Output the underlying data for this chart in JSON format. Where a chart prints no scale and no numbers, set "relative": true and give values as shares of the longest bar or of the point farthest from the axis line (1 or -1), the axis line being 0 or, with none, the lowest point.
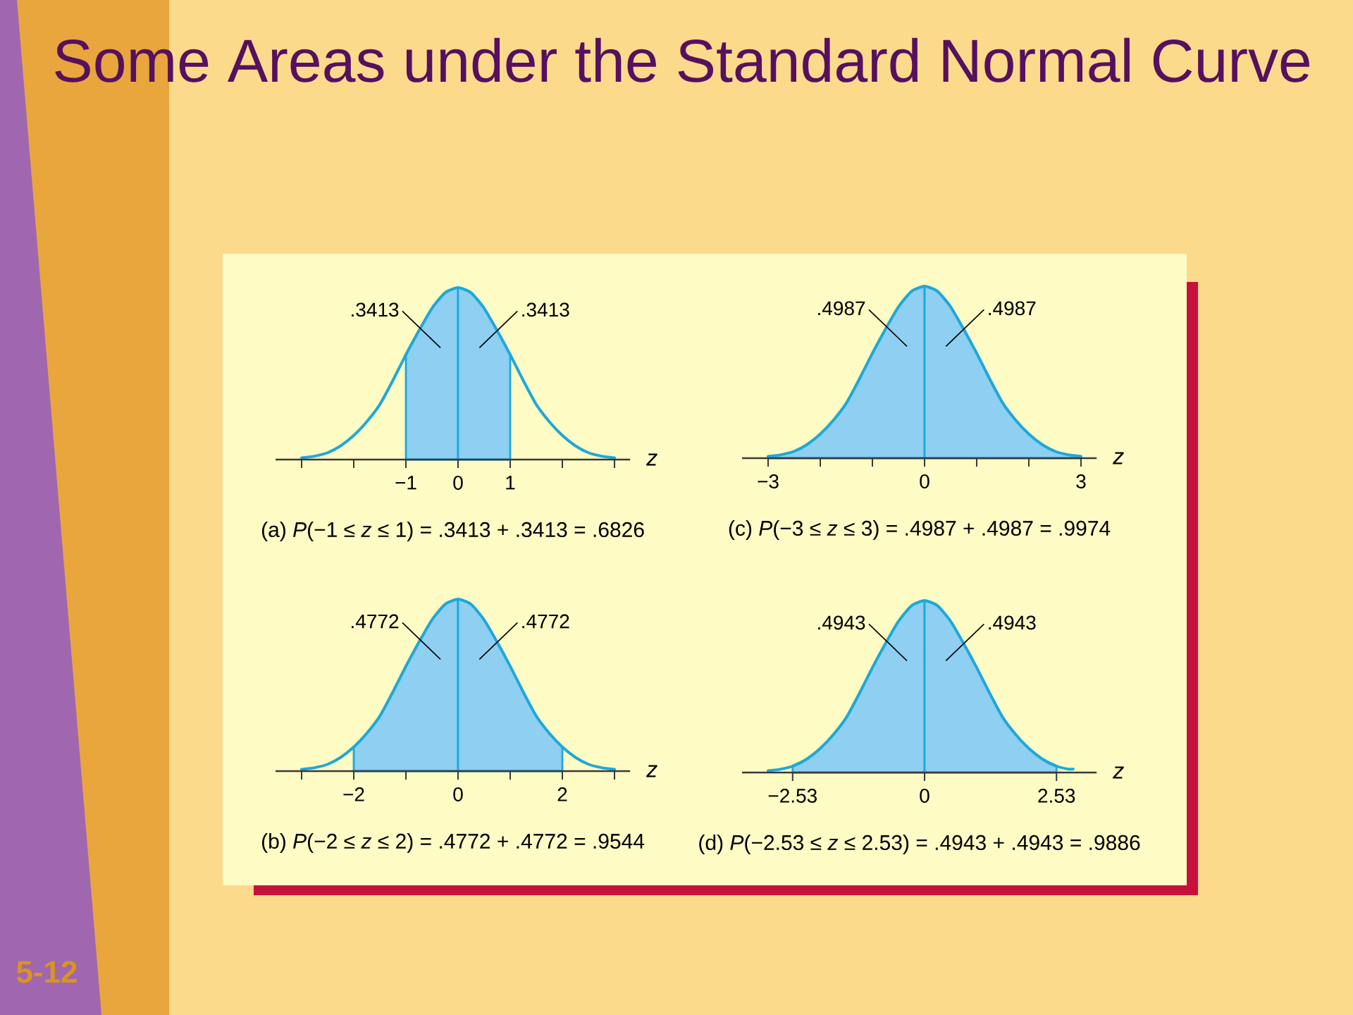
{
  "chart_data": [
    {
      "type": "area",
      "title": "Some Areas under the Standard Normal Curve",
      "xlabel": "z",
      "relative": true,
      "xlim": [
        -3.5,
        3.3
      ],
      "xticks": [
        {
          "value": -3,
          "label": null
        },
        {
          "value": -2,
          "label": null
        },
        {
          "value": -1,
          "label": "−1"
        },
        0,
        1,
        {
          "value": 2,
          "label": null
        },
        {
          "value": 3,
          "label": null
        }
      ],
      "series": [
        {
          "type": "line",
          "color": "#1fa8d9",
          "x": [
            -3,
            -2.75,
            -2.5,
            -2.25,
            -2,
            -1.75,
            -1.5,
            -1.25,
            -1,
            -0.75,
            -0.5,
            -0.25,
            0,
            0.25,
            0.5,
            0.75,
            1,
            1.25,
            1.5,
            1.75,
            2,
            2.25,
            2.5,
            2.75,
            3
          ],
          "values": [
            0.01,
            0.02,
            0.04,
            0.08,
            0.14,
            0.22,
            0.32,
            0.46,
            0.61,
            0.75,
            0.88,
            0.97,
            1,
            0.97,
            0.88,
            0.75,
            0.61,
            0.46,
            0.32,
            0.22,
            0.14,
            0.08,
            0.04,
            0.02,
            0.01
          ]
        },
        {
          "color": "#8ecff2",
          "x": [
            -1,
            -0.75,
            -0.5,
            -0.25,
            0
          ],
          "values": [
            0.61,
            0.75,
            0.88,
            0.97,
            1
          ]
        },
        {
          "color": "#8ecff2",
          "x": [
            0,
            0.25,
            0.5,
            0.75,
            1
          ],
          "values": [
            1,
            0.97,
            0.88,
            0.75,
            0.61
          ]
        }
      ],
      "annotations": [
        ".3413",
        ".3413",
        "(a) *P*(−1 ≤ *z* ≤ 1) = .3413 + .3413 = .6826",
        "5-12"
      ]
    },
    {
      "type": "area",
      "xlabel": "z",
      "relative": true,
      "xlim": [
        -3.5,
        3.3
      ],
      "xticks": [
        {
          "value": -3,
          "label": "−3"
        },
        {
          "value": -2,
          "label": null
        },
        {
          "value": -1,
          "label": null
        },
        0,
        {
          "value": 1,
          "label": null
        },
        {
          "value": 2,
          "label": null
        },
        3
      ],
      "series": [
        {
          "type": "line",
          "color": "#1fa8d9",
          "x": [
            -3,
            -2.75,
            -2.5,
            -2.25,
            -2,
            -1.75,
            -1.5,
            -1.25,
            -1,
            -0.75,
            -0.5,
            -0.25,
            0,
            0.25,
            0.5,
            0.75,
            1,
            1.25,
            1.5,
            1.75,
            2,
            2.25,
            2.5,
            2.75,
            3
          ],
          "values": [
            0.01,
            0.02,
            0.04,
            0.08,
            0.14,
            0.22,
            0.32,
            0.46,
            0.61,
            0.75,
            0.88,
            0.97,
            1,
            0.97,
            0.88,
            0.75,
            0.61,
            0.46,
            0.32,
            0.22,
            0.14,
            0.08,
            0.04,
            0.02,
            0.01
          ]
        },
        {
          "color": "#8ecff2",
          "x": [
            -3,
            -2.75,
            -2.5,
            -2.25,
            -2,
            -1.75,
            -1.5,
            -1.25,
            -1,
            -0.75,
            -0.5,
            -0.25,
            0
          ],
          "values": [
            0.01,
            0.02,
            0.04,
            0.08,
            0.14,
            0.22,
            0.32,
            0.46,
            0.61,
            0.75,
            0.88,
            0.97,
            1
          ]
        },
        {
          "color": "#8ecff2",
          "x": [
            0,
            0.25,
            0.5,
            0.75,
            1,
            1.25,
            1.5,
            1.75,
            2,
            2.25,
            2.5,
            2.75,
            3
          ],
          "values": [
            1,
            0.97,
            0.88,
            0.75,
            0.61,
            0.46,
            0.32,
            0.22,
            0.14,
            0.08,
            0.04,
            0.02,
            0.01
          ]
        }
      ],
      "annotations": [
        ".4987",
        ".4987",
        "(c) *P*(−3 ≤ *z* ≤ 3) = .4987 + .4987 = .9974"
      ]
    },
    {
      "type": "area",
      "xlabel": "z",
      "relative": true,
      "xlim": [
        -3.5,
        3.3
      ],
      "xticks": [
        {
          "value": -3,
          "label": null
        },
        {
          "value": -2,
          "label": "−2"
        },
        {
          "value": -1,
          "label": null
        },
        0,
        {
          "value": 1,
          "label": null
        },
        2,
        {
          "value": 3,
          "label": null
        }
      ],
      "series": [
        {
          "type": "line",
          "color": "#1fa8d9",
          "x": [
            -3,
            -2.75,
            -2.5,
            -2.25,
            -2,
            -1.75,
            -1.5,
            -1.25,
            -1,
            -0.75,
            -0.5,
            -0.25,
            0,
            0.25,
            0.5,
            0.75,
            1,
            1.25,
            1.5,
            1.75,
            2,
            2.25,
            2.5,
            2.75,
            3
          ],
          "values": [
            0.01,
            0.02,
            0.04,
            0.08,
            0.14,
            0.22,
            0.32,
            0.46,
            0.61,
            0.75,
            0.88,
            0.97,
            1,
            0.97,
            0.88,
            0.75,
            0.61,
            0.46,
            0.32,
            0.22,
            0.14,
            0.08,
            0.04,
            0.02,
            0.01
          ]
        },
        {
          "color": "#8ecff2",
          "x": [
            -2,
            -1.75,
            -1.5,
            -1.25,
            -1,
            -0.75,
            -0.5,
            -0.25,
            0
          ],
          "values": [
            0.14,
            0.22,
            0.32,
            0.46,
            0.61,
            0.75,
            0.88,
            0.97,
            1
          ]
        },
        {
          "color": "#8ecff2",
          "x": [
            0,
            0.25,
            0.5,
            0.75,
            1,
            1.25,
            1.5,
            1.75,
            2
          ],
          "values": [
            1,
            0.97,
            0.88,
            0.75,
            0.61,
            0.46,
            0.32,
            0.22,
            0.14
          ]
        }
      ],
      "annotations": [
        ".4772",
        ".4772",
        "(b) *P*(−2 ≤ *z* ≤ 2) = .4772 + .4772 = .9544"
      ]
    },
    {
      "type": "area",
      "xlabel": "z",
      "relative": true,
      "xlim": [
        -3.5,
        3.3
      ],
      "xticks": [
        {
          "value": -2.53,
          "label": "−2.53"
        },
        0,
        2.53
      ],
      "series": [
        {
          "type": "line",
          "color": "#1fa8d9",
          "x": [
            -3,
            -2.75,
            -2.5,
            -2.25,
            -2,
            -1.75,
            -1.5,
            -1.25,
            -1,
            -0.75,
            -0.5,
            -0.25,
            0,
            0.25,
            0.5,
            0.75,
            1,
            1.25,
            1.5,
            1.75,
            2,
            2.25,
            2.5,
            2.75,
            2.85
          ],
          "values": [
            0.01,
            0.02,
            0.04,
            0.08,
            0.14,
            0.22,
            0.32,
            0.46,
            0.61,
            0.75,
            0.88,
            0.97,
            1,
            0.97,
            0.88,
            0.75,
            0.61,
            0.46,
            0.32,
            0.22,
            0.14,
            0.08,
            0.04,
            0.02,
            0.02
          ]
        },
        {
          "color": "#8ecff2",
          "x": [
            -2.53,
            -2.25,
            -2,
            -1.75,
            -1.5,
            -1.25,
            -1,
            -0.75,
            -0.5,
            -0.25,
            0
          ],
          "values": [
            0.04,
            0.08,
            0.14,
            0.22,
            0.32,
            0.46,
            0.61,
            0.75,
            0.88,
            0.97,
            1
          ]
        },
        {
          "color": "#8ecff2",
          "x": [
            0,
            0.25,
            0.5,
            0.75,
            1,
            1.25,
            1.5,
            1.75,
            2,
            2.25,
            2.53
          ],
          "values": [
            1,
            0.97,
            0.88,
            0.75,
            0.61,
            0.46,
            0.32,
            0.22,
            0.14,
            0.08,
            0.04
          ]
        }
      ],
      "annotations": [
        ".4943",
        ".4943",
        "(d) *P*(−2.53 ≤ *z* ≤ 2.53) = .4943 + .4943 = .9886"
      ]
    }
  ]
}
